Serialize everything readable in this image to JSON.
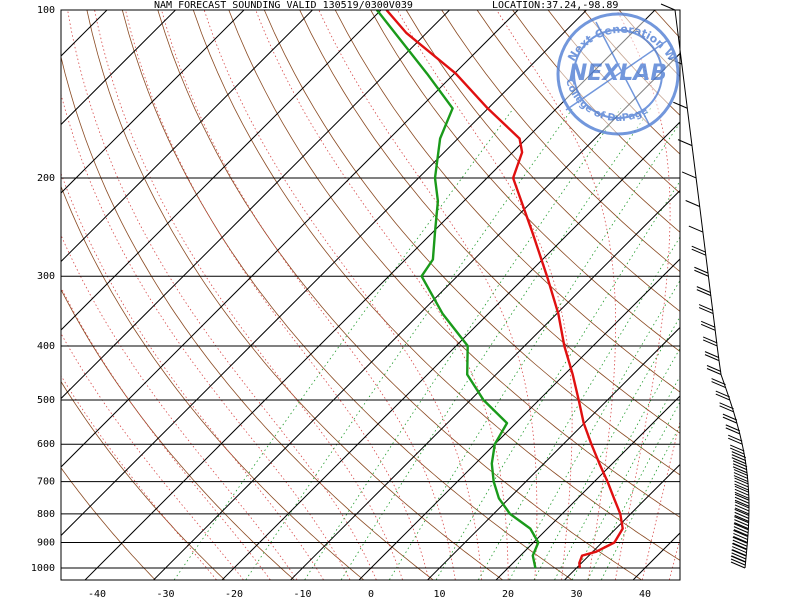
{
  "chart_data": {
    "type": "line",
    "title": "NAM FORECAST SOUNDING VALID 130519/0300V039",
    "location": "LOCATION:37.24,-98.89",
    "xlabel": "",
    "ylabel": "",
    "xlim": [
      -45,
      45
    ],
    "ylim": [
      1000,
      100
    ],
    "x_ticks": [
      -40,
      -30,
      -20,
      -10,
      0,
      10,
      20,
      30,
      40
    ],
    "y_ticks": [
      100,
      200,
      300,
      400,
      500,
      600,
      700,
      800,
      900,
      1000
    ],
    "y_scale": "log",
    "grid": true,
    "series": [
      {
        "name": "",
        "color": "#e01010",
        "points": [
          {
            "p": 1000,
            "t": 30.5
          },
          {
            "p": 980,
            "t": 29.7
          },
          {
            "p": 950,
            "t": 29.0
          },
          {
            "p": 935,
            "t": 30.5
          },
          {
            "p": 900,
            "t": 31.8
          },
          {
            "p": 850,
            "t": 31.0
          },
          {
            "p": 800,
            "t": 28.5
          },
          {
            "p": 750,
            "t": 25.3
          },
          {
            "p": 700,
            "t": 21.9
          },
          {
            "p": 650,
            "t": 18.1
          },
          {
            "p": 600,
            "t": 14.1
          },
          {
            "p": 550,
            "t": 9.9
          },
          {
            "p": 500,
            "t": 5.8
          },
          {
            "p": 450,
            "t": 1.2
          },
          {
            "p": 400,
            "t": -4.2
          },
          {
            "p": 350,
            "t": -9.8
          },
          {
            "p": 300,
            "t": -16.9
          },
          {
            "p": 250,
            "t": -25.5
          },
          {
            "p": 200,
            "t": -36.2
          },
          {
            "p": 180,
            "t": -38.6
          },
          {
            "p": 170,
            "t": -41.0
          },
          {
            "p": 150,
            "t": -50.1
          },
          {
            "p": 130,
            "t": -59.8
          },
          {
            "p": 110,
            "t": -72.9
          },
          {
            "p": 100,
            "t": -79.2
          }
        ]
      },
      {
        "name": "",
        "color": "#1a9a1a",
        "points": [
          {
            "p": 1000,
            "t": 24.0
          },
          {
            "p": 950,
            "t": 21.8
          },
          {
            "p": 900,
            "t": 20.7
          },
          {
            "p": 850,
            "t": 17.5
          },
          {
            "p": 800,
            "t": 12.4
          },
          {
            "p": 750,
            "t": 8.5
          },
          {
            "p": 700,
            "t": 5.3
          },
          {
            "p": 650,
            "t": 2.4
          },
          {
            "p": 600,
            "t": 0.0
          },
          {
            "p": 550,
            "t": -1.3
          },
          {
            "p": 500,
            "t": -8.1
          },
          {
            "p": 450,
            "t": -14.2
          },
          {
            "p": 400,
            "t": -18.3
          },
          {
            "p": 350,
            "t": -26.7
          },
          {
            "p": 300,
            "t": -35.2
          },
          {
            "p": 280,
            "t": -36.0
          },
          {
            "p": 250,
            "t": -39.7
          },
          {
            "p": 220,
            "t": -43.8
          },
          {
            "p": 200,
            "t": -47.6
          },
          {
            "p": 170,
            "t": -52.6
          },
          {
            "p": 150,
            "t": -55.2
          },
          {
            "p": 130,
            "t": -64.0
          },
          {
            "p": 100,
            "t": -80.6
          }
        ]
      }
    ]
  },
  "watermark": {
    "brand": "NEXLAB",
    "ring_top": "Next Generation Weather Lab",
    "ring_bottom": "College of DuPage",
    "color": "#5a86d6"
  }
}
